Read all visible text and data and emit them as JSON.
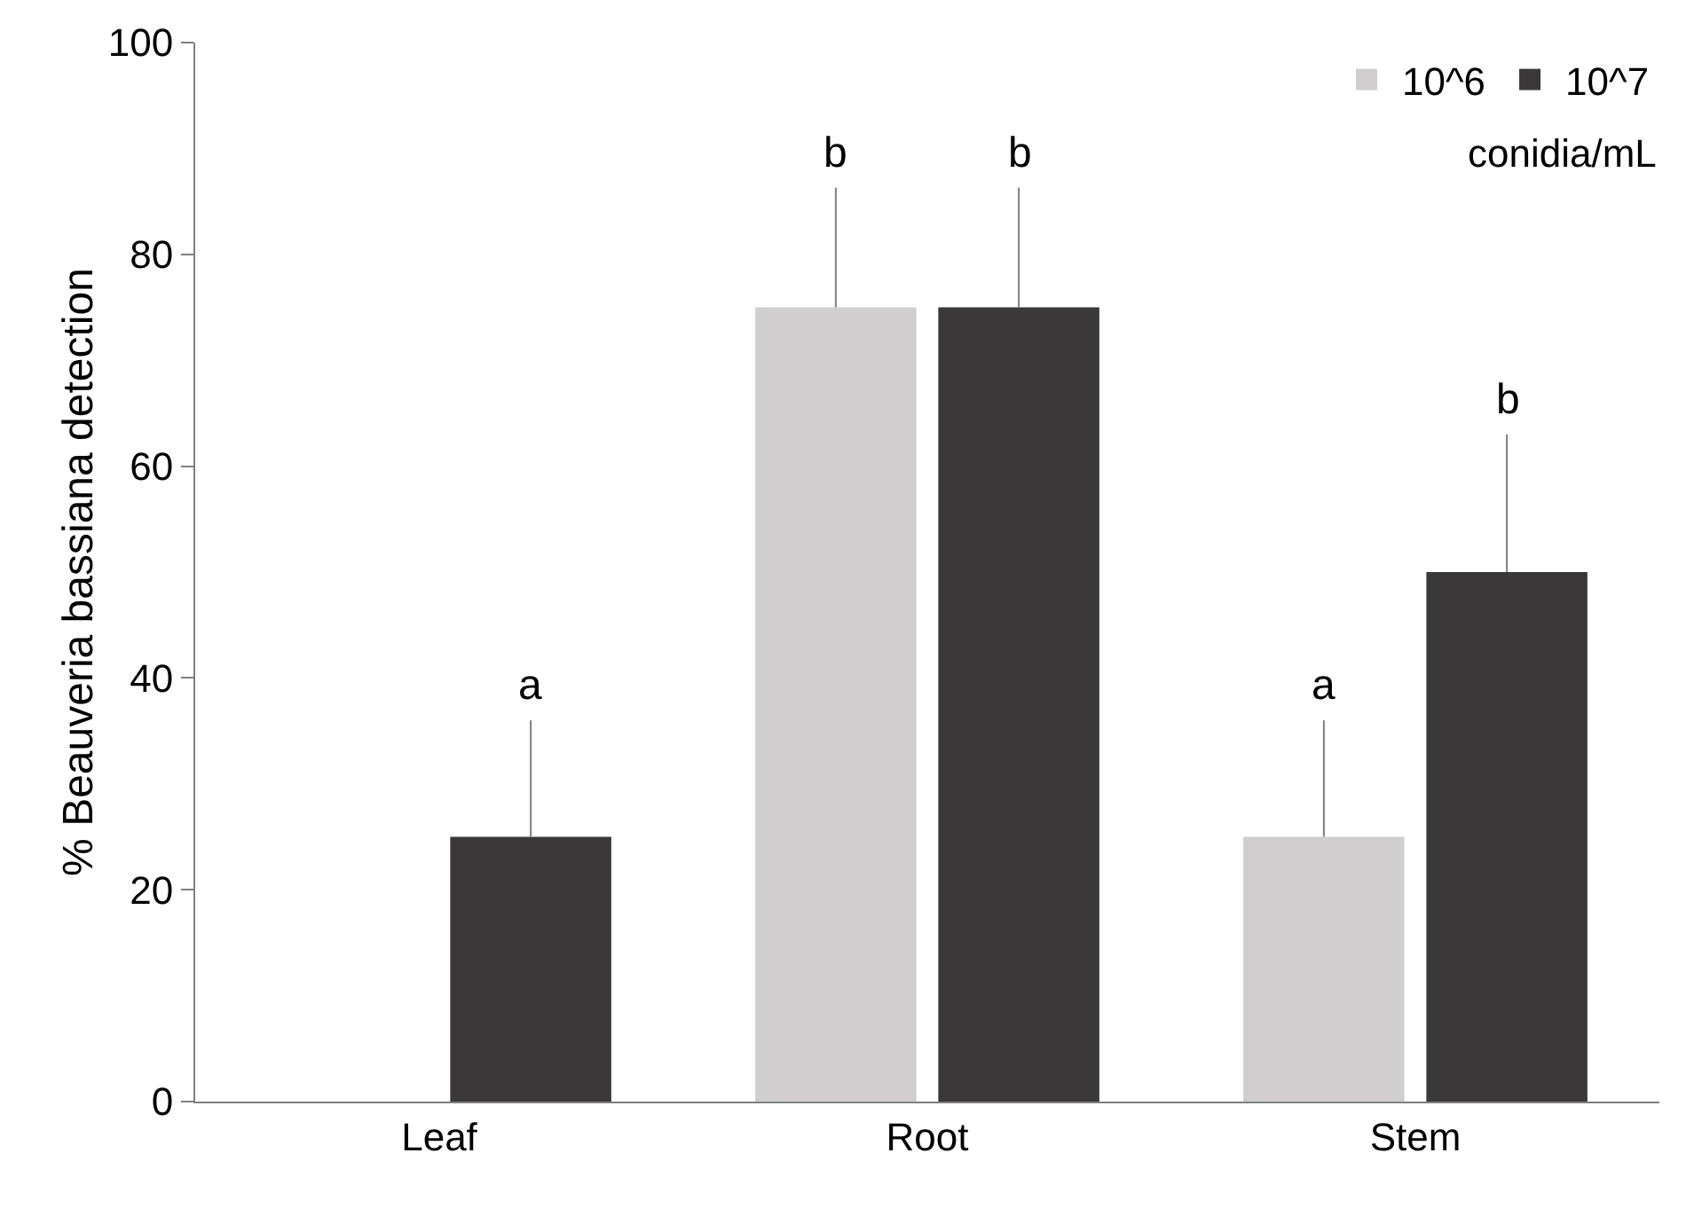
{
  "chart_data": {
    "type": "bar",
    "ylabel": "% Beauveria bassiana detection",
    "legend_title": "conidia/mL",
    "categories": [
      "Leaf",
      "Root",
      "Stem"
    ],
    "series": [
      {
        "name": "10^6",
        "color": "#d0cece",
        "values": [
          0,
          75,
          25
        ],
        "errors": [
          null,
          [
            75,
            86.3
          ],
          [
            25,
            36
          ]
        ]
      },
      {
        "name": "10^7",
        "color": "#3a3838",
        "values": [
          25,
          75,
          50
        ],
        "errors": [
          [
            25,
            36
          ],
          [
            75,
            86.3
          ],
          [
            50,
            63
          ]
        ]
      }
    ],
    "ylim": [
      0,
      100
    ],
    "yticks": [
      0,
      20,
      40,
      60,
      80,
      100
    ],
    "grid": false,
    "legend": "top right",
    "annotations": [
      "a",
      "b",
      "b",
      "a",
      "b"
    ]
  }
}
